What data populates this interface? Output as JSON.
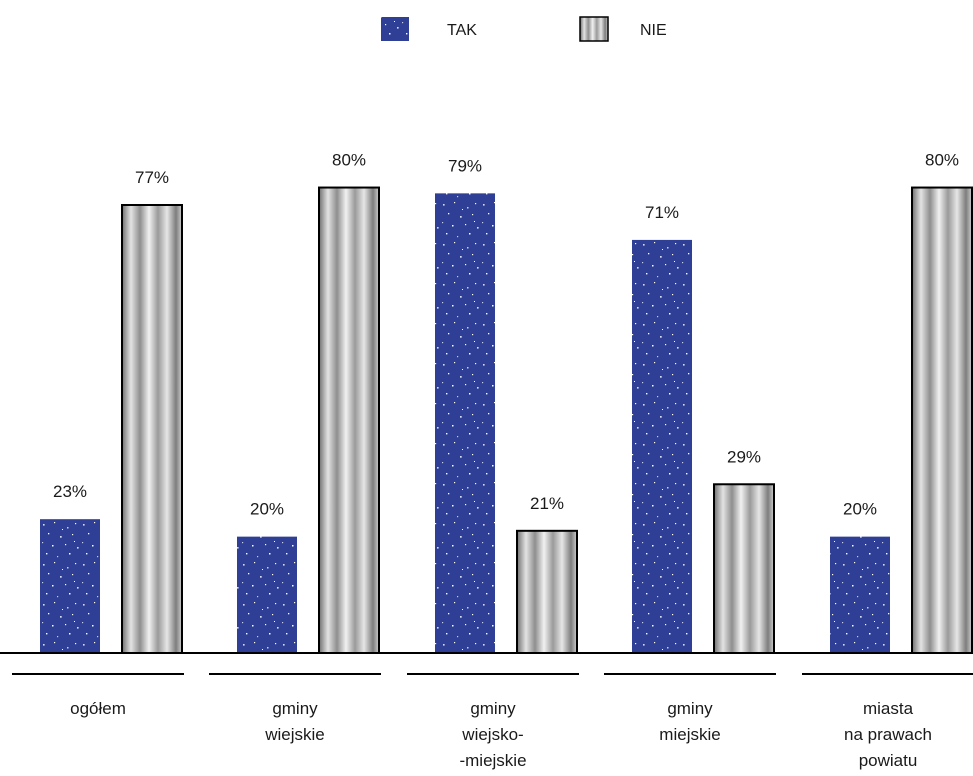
{
  "chart_data": {
    "type": "bar",
    "categories": [
      [
        "ogółem"
      ],
      [
        "gminy",
        "wiejskie"
      ],
      [
        "gminy",
        "wiejsko-",
        "-miejskie"
      ],
      [
        "gminy",
        "miejskie"
      ],
      [
        "miasta",
        "na prawach",
        "powiatu"
      ]
    ],
    "series": [
      {
        "name": "TAK",
        "values": [
          23,
          20,
          79,
          71,
          20
        ]
      },
      {
        "name": "NIE",
        "values": [
          77,
          80,
          21,
          29,
          80
        ]
      }
    ],
    "value_suffix": "%",
    "ylim": [
      0,
      100
    ],
    "grid": false,
    "legend": "top-center",
    "colors": {
      "tak": "#2e3f95",
      "nie": "#9c9c9c",
      "outline": "#000000"
    }
  }
}
